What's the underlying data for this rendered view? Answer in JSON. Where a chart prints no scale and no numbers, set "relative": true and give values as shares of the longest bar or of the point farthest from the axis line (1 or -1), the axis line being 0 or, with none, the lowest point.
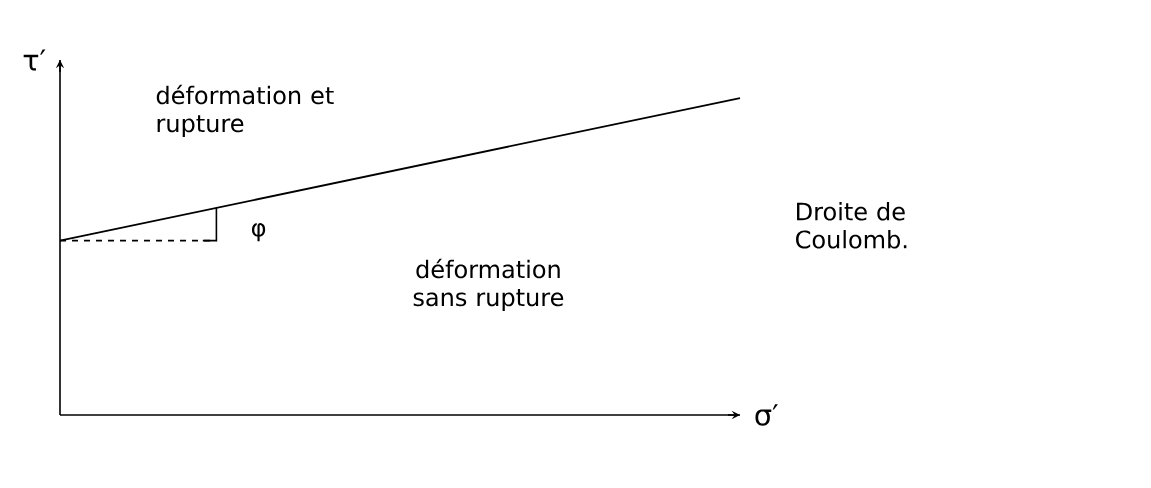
{
  "chart_data": {
    "type": "line",
    "relative": true,
    "categories": [
      null,
      null
    ],
    "values": [
      0.55,
      1
    ],
    "color": "#000000",
    "xlabel": "σ′",
    "ylabel": "τ′",
    "annotations": [
      "déformation et rupture",
      "φ",
      "déformation sans rupture",
      "Droite de Coulomb."
    ]
  }
}
